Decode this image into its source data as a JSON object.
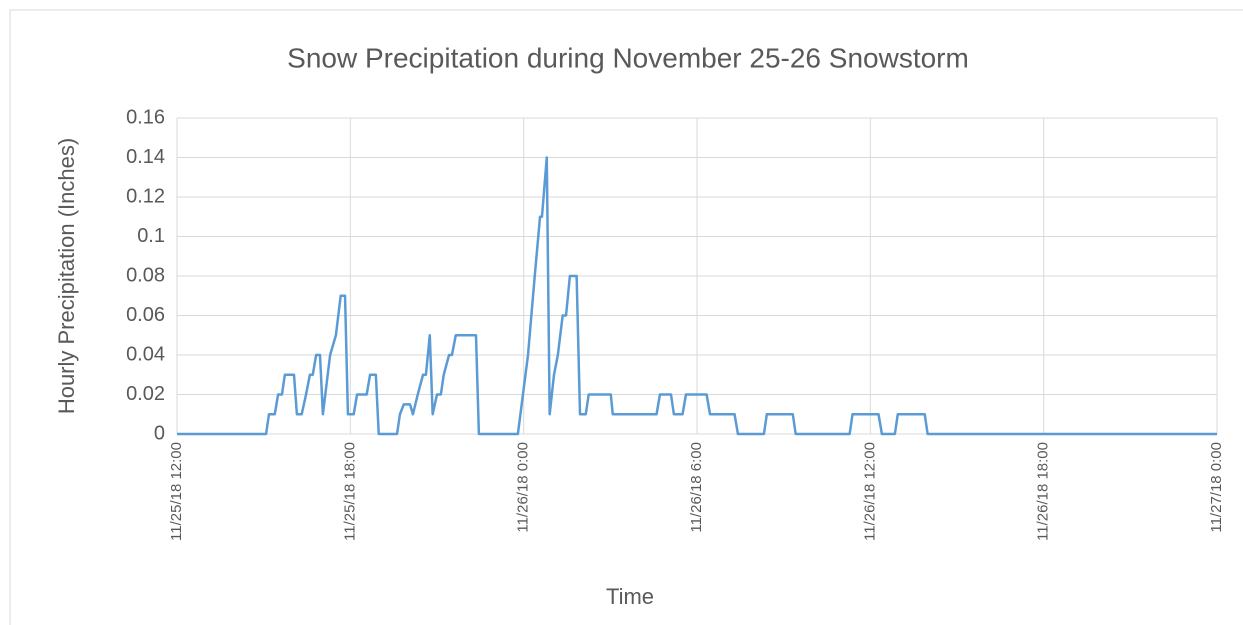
{
  "chart_data": {
    "type": "line",
    "title": "Snow Precipitation during November 25-26 Snowstorm",
    "x_label": "Time",
    "y_label": "Hourly Precipitation (Inches)",
    "grid": true,
    "xlim": [
      "11/25/18 12:00",
      "11/27/18 0:00"
    ],
    "xticks": [
      "11/25/18 12:00",
      "11/25/18 18:00",
      "11/26/18 0:00",
      "11/26/18 6:00",
      "11/26/18 12:00",
      "11/26/18 18:00",
      "11/27/18 0:00"
    ],
    "ylim": [
      0,
      0.16
    ],
    "yticks": [
      0,
      0.02,
      0.04,
      0.06,
      0.08,
      0.1,
      0.12,
      0.14,
      0.16
    ],
    "x": [
      "11/25/18 12:00",
      "11/25/18 15:05",
      "11/25/18 15:11",
      "11/25/18 15:23",
      "11/25/18 15:30",
      "11/25/18 15:38",
      "11/25/18 15:44",
      "11/25/18 16:03",
      "11/25/18 16:09",
      "11/25/18 16:19",
      "11/25/18 16:28",
      "11/25/18 16:36",
      "11/25/18 16:42",
      "11/25/18 16:49",
      "11/25/18 16:57",
      "11/25/18 17:03",
      "11/25/18 17:18",
      "11/25/18 17:30",
      "11/25/18 17:40",
      "11/25/18 17:49",
      "11/25/18 17:55",
      "11/25/18 18:07",
      "11/25/18 18:14",
      "11/25/18 18:34",
      "11/25/18 18:41",
      "11/25/18 18:53",
      "11/25/18 18:59",
      "11/25/18 19:37",
      "11/25/18 19:43",
      "11/25/18 19:51",
      "11/25/18 20:04",
      "11/25/18 20:10",
      "11/25/18 20:20",
      "11/25/18 20:31",
      "11/25/18 20:37",
      "11/25/18 20:45",
      "11/25/18 20:51",
      "11/25/18 21:00",
      "11/25/18 21:08",
      "11/25/18 21:14",
      "11/25/18 21:25",
      "11/25/18 21:31",
      "11/25/18 21:39",
      "11/25/18 22:21",
      "11/25/18 22:27",
      "11/25/18 23:48",
      "11/26/18 0:09",
      "11/26/18 0:23",
      "11/26/18 0:34",
      "11/26/18 0:38",
      "11/26/18 0:48",
      "11/26/18 0:54",
      "11/26/18 1:03",
      "11/26/18 1:11",
      "11/26/18 1:21",
      "11/26/18 1:28",
      "11/26/18 1:36",
      "11/26/18 1:50",
      "11/26/18 1:57",
      "11/26/18 2:09",
      "11/26/18 2:15",
      "11/26/18 3:01",
      "11/26/18 3:05",
      "11/26/18 4:36",
      "11/26/18 4:43",
      "11/26/18 5:06",
      "11/26/18 5:12",
      "11/26/18 5:30",
      "11/26/18 5:37",
      "11/26/18 6:20",
      "11/26/18 6:27",
      "11/26/18 7:18",
      "11/26/18 7:25",
      "11/26/18 8:19",
      "11/26/18 8:25",
      "11/26/18 9:19",
      "11/26/18 9:25",
      "11/26/18 11:17",
      "11/26/18 11:23",
      "11/26/18 12:17",
      "11/26/18 12:24",
      "11/26/18 12:51",
      "11/26/18 12:57",
      "11/26/18 13:53",
      "11/26/18 13:59",
      "11/27/18 0:00"
    ],
    "series": [
      {
        "name": "Hourly Precipitation",
        "color": "#5b9bd5",
        "values": [
          0,
          0,
          0.01,
          0.01,
          0.02,
          0.02,
          0.03,
          0.03,
          0.01,
          0.01,
          0.02,
          0.03,
          0.03,
          0.04,
          0.04,
          0.01,
          0.04,
          0.05,
          0.07,
          0.07,
          0.01,
          0.01,
          0.02,
          0.02,
          0.03,
          0.03,
          0,
          0,
          0.01,
          0.015,
          0.015,
          0.01,
          0.02,
          0.03,
          0.03,
          0.05,
          0.01,
          0.02,
          0.02,
          0.03,
          0.04,
          0.04,
          0.05,
          0.05,
          0,
          0,
          0.04,
          0.08,
          0.11,
          0.11,
          0.14,
          0.01,
          0.03,
          0.04,
          0.06,
          0.06,
          0.08,
          0.08,
          0.01,
          0.01,
          0.02,
          0.02,
          0.01,
          0.01,
          0.02,
          0.02,
          0.01,
          0.01,
          0.02,
          0.02,
          0.01,
          0.01,
          0,
          0,
          0.01,
          0.01,
          0,
          0,
          0.01,
          0.01,
          0,
          0,
          0.01,
          0.01,
          0,
          0
        ]
      }
    ]
  }
}
